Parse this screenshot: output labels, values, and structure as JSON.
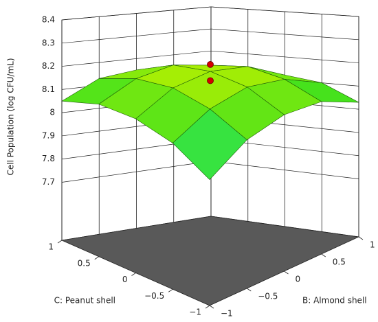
{
  "chart_data": {
    "type": "surface",
    "zlabel": "Cell Population (log CFU/mL)",
    "xlabel": "B: Almond shell",
    "ylabel": "C: Peanut shell",
    "x": [
      -1,
      -0.5,
      0,
      0.5,
      1
    ],
    "y": [
      -1,
      -0.5,
      0,
      0.5,
      1
    ],
    "z": [
      [
        7.97,
        8.07,
        8.11,
        8.1,
        8.03
      ],
      [
        8.06,
        8.15,
        8.19,
        8.17,
        8.1
      ],
      [
        8.1,
        8.19,
        8.22,
        8.2,
        8.12
      ],
      [
        8.1,
        8.18,
        8.21,
        8.18,
        8.1
      ],
      [
        8.05,
        8.13,
        8.15,
        8.12,
        8.03
      ]
    ],
    "xlim": [
      -1,
      1
    ],
    "ylim": [
      -1,
      1
    ],
    "zlim": [
      7.45,
      8.4
    ],
    "xticks": [
      {
        "value": -1,
        "label": "−1"
      },
      {
        "value": -0.5,
        "label": "−0.5"
      },
      0,
      0.5,
      1
    ],
    "yticks": [
      {
        "value": -1,
        "label": "−1"
      },
      {
        "value": -0.5,
        "label": "−0.5"
      },
      0,
      0.5,
      1
    ],
    "zticks": [
      7.7,
      7.8,
      7.9,
      8,
      8.1,
      8.2,
      8.3,
      8.4
    ],
    "points": {
      "x": [
        0,
        0
      ],
      "y": [
        0,
        0
      ],
      "z": [
        8.25,
        8.18
      ],
      "color": "#d40000"
    },
    "colormap": [
      "#30f0e0",
      "#38e020",
      "#b8f000"
    ],
    "grid": true
  }
}
